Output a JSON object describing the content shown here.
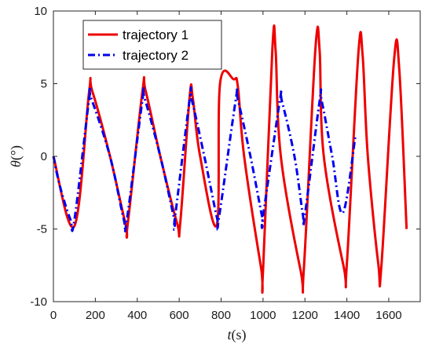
{
  "chart_data": {
    "type": "line",
    "title": "",
    "xlabel": "t(s)",
    "ylabel": "θ(°)",
    "xlim": [
      0,
      1750
    ],
    "ylim": [
      -10,
      10
    ],
    "x_ticks": [
      0,
      200,
      400,
      600,
      800,
      1000,
      1200,
      1400,
      1600
    ],
    "y_ticks": [
      -10,
      -5,
      0,
      5,
      10
    ],
    "grid": false,
    "legend_position": "top-left",
    "series": [
      {
        "name": "trajectory 1",
        "color": "#ee0000",
        "style": "solid",
        "x": [
          0,
          100,
          170,
          185,
          270,
          345,
          355,
          425,
          440,
          510,
          590,
          605,
          650,
          665,
          700,
          780,
          795,
          860,
          880,
          910,
          990,
          1000,
          1045,
          1060,
          1085,
          1180,
          1195,
          1250,
          1270,
          1290,
          1385,
          1400,
          1455,
          1475,
          1500,
          1550,
          1565,
          1625,
          1650,
          1685
        ],
        "y": [
          0,
          -4.8,
          4.4,
          4.5,
          0,
          -4.7,
          -4.6,
          4.5,
          4.5,
          0,
          -4.6,
          -4.6,
          4.1,
          4.0,
          0,
          -4.7,
          5.0,
          5.3,
          4.8,
          0,
          -7.6,
          -7.9,
          7.5,
          7.3,
          0,
          -7.9,
          -7.7,
          7.4,
          7.3,
          0,
          -7.6,
          -7.4,
          7.1,
          7.0,
          0,
          -7.4,
          -7.5,
          6.6,
          6.0,
          -5.0
        ]
      },
      {
        "name": "trajectory 2",
        "color": "#0000ee",
        "style": "dash-dot",
        "x": [
          0,
          30,
          80,
          100,
          170,
          180,
          270,
          335,
          350,
          425,
          435,
          510,
          575,
          580,
          650,
          660,
          720,
          780,
          790,
          870,
          880,
          940,
          995,
          1000,
          1080,
          1090,
          1150,
          1190,
          1200,
          1270,
          1280,
          1330,
          1380,
          1440
        ],
        "y": [
          0,
          -2.0,
          -4.3,
          -4.4,
          3.9,
          4.0,
          0,
          -4.3,
          -4.4,
          3.9,
          4.0,
          0,
          -4.2,
          -4.2,
          3.9,
          3.9,
          0,
          -4.2,
          -4.2,
          3.9,
          3.9,
          0,
          -4.1,
          -4.1,
          3.8,
          3.8,
          0,
          -4.0,
          -4.0,
          3.8,
          3.8,
          0,
          -3.9,
          1.3
        ]
      }
    ]
  }
}
